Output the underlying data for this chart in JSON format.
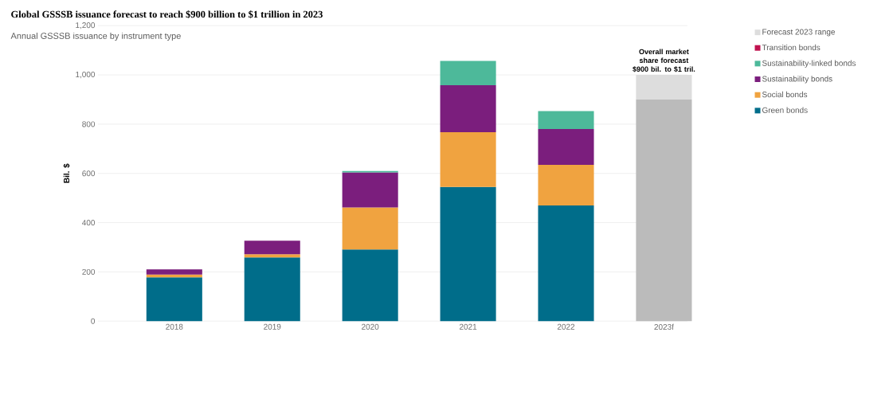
{
  "chart_data": {
    "type": "bar",
    "title": "Global GSSSB issuance forecast to reach $900 billion to $1 trillion in 2023",
    "subtitle": "Annual GSSSB issuance by instrument type",
    "ylabel": "Bil. $",
    "categories": [
      "2018",
      "2019",
      "2020",
      "2021",
      "2022",
      "2023f"
    ],
    "stacked": true,
    "series": [
      {
        "name": "Green bonds",
        "color": "#006d8a",
        "values": [
          178,
          259,
          291,
          545,
          470,
          null
        ]
      },
      {
        "name": "Social bonds",
        "color": "#f0a340",
        "values": [
          11,
          13,
          171,
          222,
          165,
          null
        ]
      },
      {
        "name": "Sustainability bonds",
        "color": "#7b1e7d",
        "values": [
          21,
          55,
          142,
          191,
          145,
          null
        ]
      },
      {
        "name": "Sustainability-linked bonds",
        "color": "#4db99a",
        "values": [
          null,
          null,
          6,
          99,
          73,
          null
        ]
      },
      {
        "name": "Transition bonds",
        "color": "#c0134f",
        "values": [
          null,
          null,
          null,
          null,
          null,
          null
        ]
      },
      {
        "color": "#bbbbbb",
        "values": [
          null,
          null,
          null,
          null,
          null,
          900
        ]
      },
      {
        "name": "Forecast 2023 range",
        "color": "#dddddd",
        "values": [
          null,
          null,
          null,
          null,
          null,
          100
        ]
      }
    ],
    "ylim": [
      0,
      1200
    ],
    "yticks": [
      0,
      200,
      400,
      600,
      800,
      {
        "value": 1000,
        "label": "1,000"
      },
      {
        "value": 1200,
        "label": "1,200"
      }
    ],
    "grid": "y",
    "legend": "right",
    "annotations": [
      {
        "text": "Overall market share forecast $900 bil. to $1 tril.",
        "x": "2023f",
        "y": 1000
      }
    ]
  }
}
